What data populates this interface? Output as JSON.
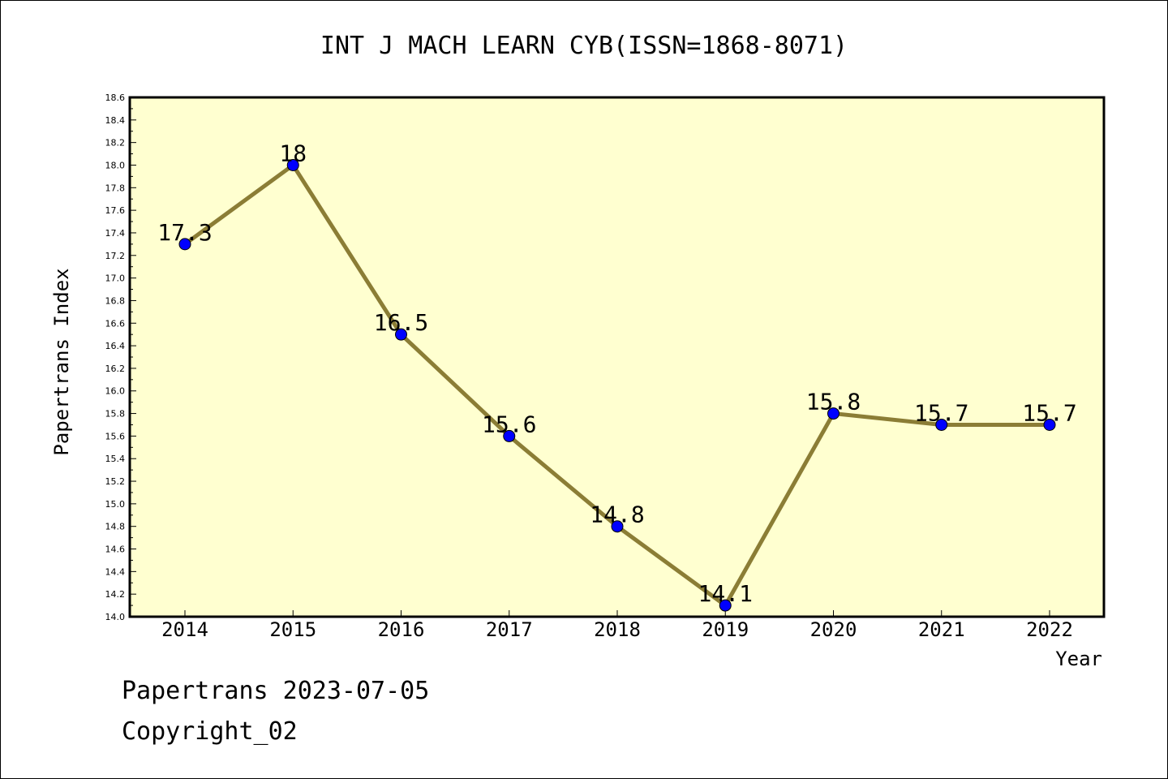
{
  "chart_data": {
    "type": "line",
    "title": "INT J MACH LEARN CYB(ISSN=1868-8071)",
    "xlabel": "Year",
    "ylabel": "Papertrans Index",
    "categories": [
      "2014",
      "2015",
      "2016",
      "2017",
      "2018",
      "2019",
      "2020",
      "2021",
      "2022"
    ],
    "values": [
      17.3,
      18.0,
      16.5,
      15.6,
      14.8,
      14.1,
      15.8,
      15.7,
      15.7
    ],
    "data_labels": [
      "17.3",
      "18",
      "16.5",
      "15.6",
      "14.8",
      "14.1",
      "15.8",
      "15.7",
      "15.7"
    ],
    "ylim": [
      14.0,
      18.6
    ],
    "yticks": [
      "14.0",
      "14.2",
      "14.4",
      "14.6",
      "14.8",
      "15.0",
      "15.2",
      "15.4",
      "15.6",
      "15.8",
      "16.0",
      "16.2",
      "16.4",
      "16.6",
      "16.8",
      "17.0",
      "17.2",
      "17.4",
      "17.6",
      "17.8",
      "18.0",
      "18.2",
      "18.4",
      "18.6"
    ],
    "grid": false,
    "colors": {
      "plot_background": "#ffffd0",
      "line": "#8b7d35",
      "marker": "#0000ff"
    }
  },
  "footer": {
    "date_line": "Papertrans 2023-07-05",
    "copyright_line": "Copyright_02"
  }
}
